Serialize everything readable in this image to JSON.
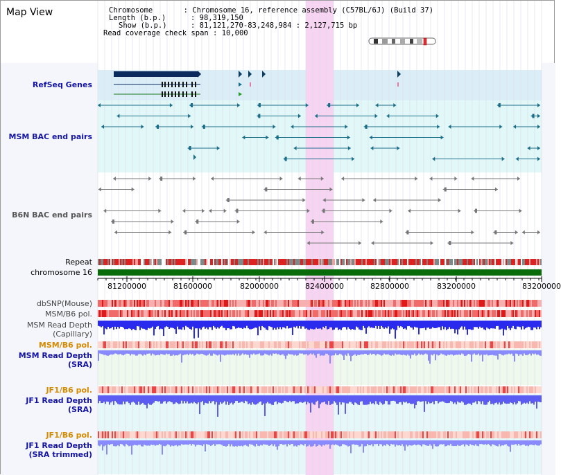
{
  "title": "Map View",
  "info": {
    "chromosome_key": "Chromosome",
    "chromosome_val": "Chromosome 16, reference assembly (C57BL/6J) (Build 37)",
    "length_key": "Length (b.p.)",
    "length_val": "98,319,150",
    "show_key": "Show (b.p.)",
    "show_val": "81,121,270-83,248,984 : 2,127,715 bp",
    "coverage_key": "Read coverage check span",
    "coverage_val": "10,000"
  },
  "tracks": {
    "refseq": "RefSeq Genes",
    "msm_bac": "MSM BAC end pairs",
    "b6n_bac": "B6N BAC end pairs",
    "repeat": "Repeat",
    "chrom": "chromosome 16",
    "dbsnp": "dbSNP(Mouse)",
    "msm_b6_pol_1": "MSM/B6 pol.",
    "msm_depth_cap_1": "MSM Read Depth",
    "msm_depth_cap_2": "(Capillary)",
    "msm_b6_pol_2": "MSM/B6 pol.",
    "msm_depth_sra_1": "MSM Read Depth",
    "msm_depth_sra_2": "(SRA)",
    "jf1_b6_pol_1": "JF1/B6 pol.",
    "jf1_depth_sra_1": "JF1 Read Depth",
    "jf1_depth_sra_2": "(SRA)",
    "jf1_b6_pol_2": "JF1/B6 pol.",
    "jf1_depth_trim_1": "JF1 Read Depth",
    "jf1_depth_trim_2": "(SRA trimmed)"
  },
  "axis": {
    "ticks": [
      "81200000",
      "81600000",
      "82000000",
      "82400000",
      "82800000",
      "83200000"
    ]
  },
  "colors": {
    "highlight": "#f7d4f2",
    "gene_blue": "#0b2a5e",
    "bac_teal": "#1a6e8a",
    "bac_gray": "#777777",
    "chrom_green": "#0a6b0a",
    "depth_blue": "#2a2aee",
    "depth_light": "#8a8aff",
    "snp_red": "#e83030"
  }
}
